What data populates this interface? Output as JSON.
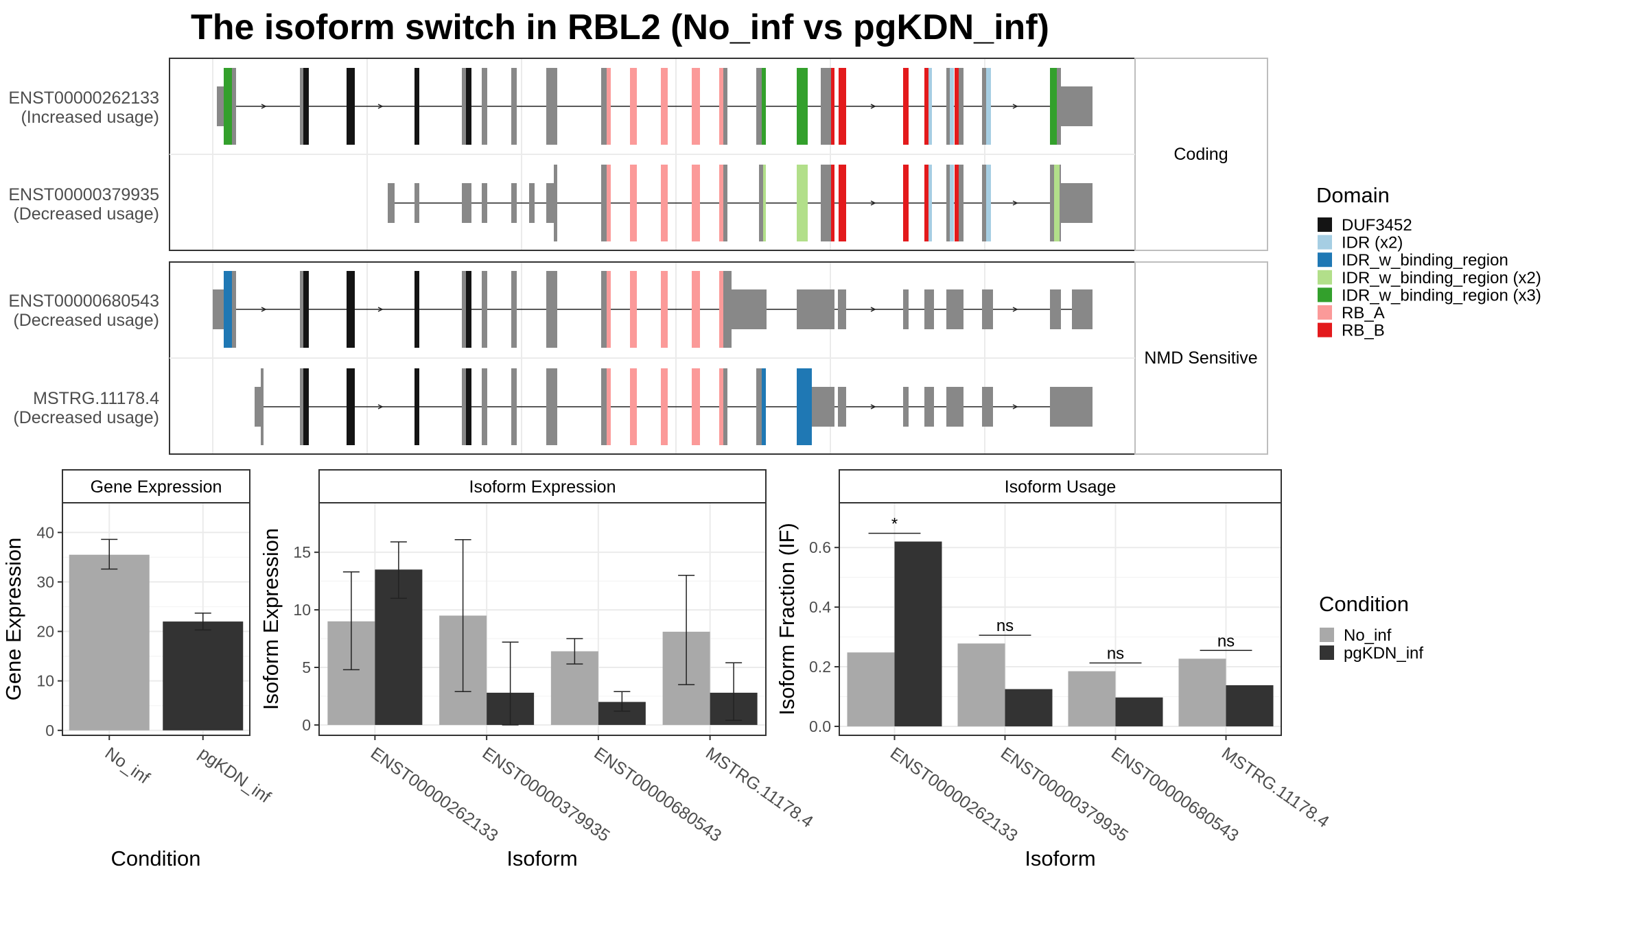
{
  "title": "The isoform switch in RBL2 (No_inf vs pgKDN_inf)",
  "transcript_panel": {
    "facets": [
      "Coding",
      "NMD Sensitive"
    ],
    "transcripts": [
      {
        "id": "ENST00000262133",
        "usage": "(Increased usage)",
        "facet": "Coding"
      },
      {
        "id": "ENST00000379935",
        "usage": "(Decreased usage)",
        "facet": "Coding"
      },
      {
        "id": "ENST00000680543",
        "usage": "(Decreased usage)",
        "facet": "NMD Sensitive"
      },
      {
        "id": "MSTRG.11178.4",
        "usage": "(Decreased usage)",
        "facet": "NMD Sensitive"
      }
    ]
  },
  "domain_legend": {
    "title": "Domain",
    "items": [
      {
        "label": "DUF3452",
        "color": "#141414"
      },
      {
        "label": "IDR (x2)",
        "color": "#a6cee3"
      },
      {
        "label": "IDR_w_binding_region",
        "color": "#1f78b4"
      },
      {
        "label": "IDR_w_binding_region (x2)",
        "color": "#b2df8a"
      },
      {
        "label": "IDR_w_binding_region (x3)",
        "color": "#33a02c"
      },
      {
        "label": "RB_A",
        "color": "#fb9a99"
      },
      {
        "label": "RB_B",
        "color": "#e31a1c"
      }
    ]
  },
  "condition_legend": {
    "title": "Condition",
    "items": [
      {
        "label": "No_inf",
        "color": "#a9a9a9"
      },
      {
        "label": "pgKDN_inf",
        "color": "#333333"
      }
    ]
  },
  "chart_data": [
    {
      "type": "bar",
      "title": "Gene Expression",
      "xlabel": "Condition",
      "ylabel": "Gene Expression",
      "categories": [
        "No_inf",
        "pgKDN_inf"
      ],
      "values": [
        35.5,
        22.0
      ],
      "error_low": [
        32.6,
        20.3
      ],
      "error_high": [
        38.6,
        23.7
      ],
      "ylim": [
        -1,
        46
      ],
      "yticks": [
        0,
        10,
        20,
        30,
        40
      ]
    },
    {
      "type": "bar",
      "title": "Isoform Expression",
      "xlabel": "Isoform",
      "ylabel": "Isoform Expression",
      "categories": [
        "ENST00000262133",
        "ENST00000379935",
        "ENST00000680543",
        "MSTRG.11178.4"
      ],
      "series": [
        {
          "name": "No_inf",
          "values": [
            9.0,
            9.5,
            6.4,
            8.1
          ],
          "error_low": [
            4.8,
            2.9,
            5.3,
            3.5
          ],
          "error_high": [
            13.3,
            16.1,
            7.5,
            13.0
          ]
        },
        {
          "name": "pgKDN_inf",
          "values": [
            13.5,
            2.8,
            2.0,
            2.8
          ],
          "error_low": [
            11.0,
            0.0,
            1.2,
            0.4
          ],
          "error_high": [
            15.9,
            7.2,
            2.9,
            5.4
          ]
        }
      ],
      "ylim": [
        -0.9,
        19.3
      ],
      "yticks": [
        0,
        5,
        10,
        15
      ]
    },
    {
      "type": "bar",
      "title": "Isoform Usage",
      "xlabel": "Isoform",
      "ylabel": "Isoform Fraction (IF)",
      "categories": [
        "ENST00000262133",
        "ENST00000379935",
        "ENST00000680543",
        "MSTRG.11178.4"
      ],
      "series": [
        {
          "name": "No_inf",
          "values": [
            0.248,
            0.278,
            0.185,
            0.227
          ]
        },
        {
          "name": "pgKDN_inf",
          "values": [
            0.62,
            0.125,
            0.097,
            0.138
          ]
        }
      ],
      "significance": [
        "*",
        "ns",
        "ns",
        "ns"
      ],
      "ylim": [
        -0.03,
        0.75
      ],
      "yticks": [
        0.0,
        0.2,
        0.4,
        0.6
      ],
      "ytick_labels": [
        "0.0",
        "0.2",
        "0.4",
        "0.6"
      ]
    }
  ]
}
